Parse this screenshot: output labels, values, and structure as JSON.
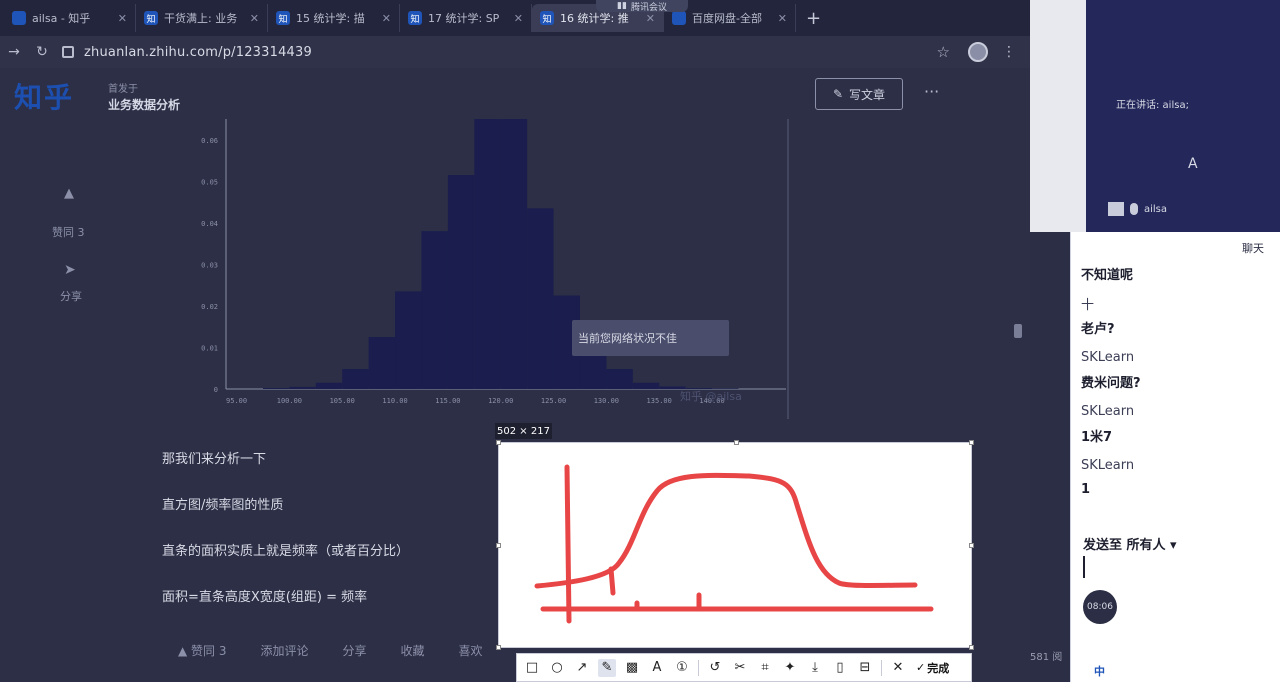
{
  "browser": {
    "tabs": [
      {
        "icon": "",
        "label": "ailsa - 知乎",
        "active": false
      },
      {
        "icon": "知",
        "label": "干货满上: 业务",
        "active": false
      },
      {
        "icon": "知",
        "label": "15 统计学: 描",
        "active": false
      },
      {
        "icon": "知",
        "label": "17 统计学: SP",
        "active": false
      },
      {
        "icon": "知",
        "label": "16 统计学: 推",
        "active": true
      },
      {
        "icon": "",
        "label": "百度网盘-全部",
        "active": false
      }
    ],
    "meeting_pill": "腾讯会议",
    "url": "zhuanlan.zhihu.com/p/123314439"
  },
  "zhihu": {
    "logo": "知乎",
    "column_author": "首发于",
    "column_name": "业务数据分析",
    "write_button": "写文章",
    "more": "···",
    "upvote_label": "赞同 3",
    "share_label": "分享",
    "overlay_tip": "当前您网络状况不佳",
    "watermark": "知乎 @ailsa",
    "paragraphs": [
      "那我们来分析一下",
      "直方图/频率图的性质",
      "直条的面积实质上就是频率（或者百分比）",
      "面积=直条高度X宽度(组距) = 频率"
    ],
    "bottom_actions": [
      "▲ 赞同 3",
      "添加评论",
      "分享",
      "收藏",
      "喜欢"
    ],
    "views": "581 阅"
  },
  "chart_data": {
    "type": "bar",
    "xlabel": "",
    "ylabel": "",
    "x_tick_labels": [
      "95.00",
      "100.00",
      "105.00",
      "110.00",
      "115.00",
      "120.00",
      "125.00",
      "130.00",
      "135.00",
      "140.00"
    ],
    "y_tick_labels": [
      "0",
      "0.01",
      "0.02",
      "0.03",
      "0.04",
      "0.05",
      "0.06"
    ],
    "ylim": [
      0,
      0.065
    ],
    "xlim": [
      94,
      147
    ],
    "bin_width": 2.5,
    "bin_starts": [
      97.5,
      100,
      102.5,
      105,
      107.5,
      110,
      112.5,
      115,
      117.5,
      120,
      122.5,
      125,
      127.5,
      130,
      132.5,
      135,
      137.5,
      140
    ],
    "values": [
      0.0002,
      0.0005,
      0.0015,
      0.0048,
      0.0125,
      0.0235,
      0.038,
      0.0515,
      0.0655,
      0.0655,
      0.0435,
      0.0225,
      0.012,
      0.0048,
      0.0015,
      0.0006,
      0.0002,
      0.0001
    ],
    "bar_color": "#1a1d4d"
  },
  "capture": {
    "size_label": "502 × 217",
    "toolbar": {
      "tools": [
        {
          "name": "rectangle-tool-icon",
          "glyph": "□"
        },
        {
          "name": "ellipse-tool-icon",
          "glyph": "○"
        },
        {
          "name": "arrow-tool-icon",
          "glyph": "↗"
        },
        {
          "name": "pen-tool-icon",
          "glyph": "✎"
        },
        {
          "name": "mosaic-tool-icon",
          "glyph": "▩"
        },
        {
          "name": "text-tool-icon",
          "glyph": "A"
        },
        {
          "name": "number-tool-icon",
          "glyph": "①"
        }
      ],
      "actions": [
        {
          "name": "undo-icon",
          "glyph": "↺"
        },
        {
          "name": "cut-icon",
          "glyph": "✂"
        },
        {
          "name": "crop-icon",
          "glyph": "⌗"
        },
        {
          "name": "pin-icon",
          "glyph": "✦"
        },
        {
          "name": "download-icon",
          "glyph": "⤓"
        },
        {
          "name": "copy-icon",
          "glyph": "▯"
        },
        {
          "name": "bookmark-icon",
          "glyph": "⊟"
        }
      ],
      "close_glyph": "✕",
      "done_label": "完成"
    }
  },
  "meeting": {
    "speaking": "正在讲话: ailsa;",
    "avatar_letter": "A",
    "user_name": "ailsa",
    "chat_title": "聊天",
    "messages": [
      {
        "text": "不知道呢",
        "style": "bold"
      },
      {
        "text": "十",
        "style": "name"
      },
      {
        "text": "老卢?",
        "style": "bold"
      },
      {
        "text": "SKLearn",
        "style": "name"
      },
      {
        "text": "费米问题?",
        "style": "bold"
      },
      {
        "text": "SKLearn",
        "style": "name"
      },
      {
        "text": "1米7",
        "style": "bold"
      },
      {
        "text": "SKLearn",
        "style": "name"
      },
      {
        "text": "1",
        "style": "bold"
      }
    ],
    "send_to": "发送至 所有人 ▾",
    "timer": "08:06",
    "taskbar_lang": "中"
  }
}
